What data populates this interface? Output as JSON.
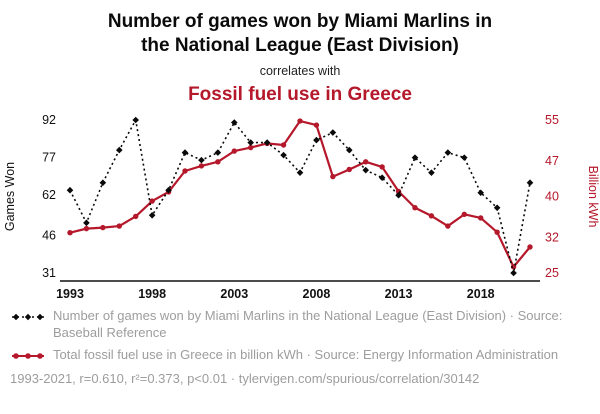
{
  "header": {
    "title_line1": "Number of games won by Miami Marlins in",
    "title_line2": "the National League (East Division)",
    "connector": "correlates with",
    "subtitle": "Fossil fuel use in Greece"
  },
  "colors": {
    "accent_red": "#b5182b",
    "text_gray": "#9d9d9d",
    "axis_black": "#111111"
  },
  "chart_data": {
    "type": "line",
    "title": "Number of games won by Miami Marlins in the National League (East Division) correlates with Fossil fuel use in Greece",
    "x": [
      1993,
      1994,
      1995,
      1996,
      1997,
      1998,
      1999,
      2000,
      2001,
      2002,
      2003,
      2004,
      2005,
      2006,
      2007,
      2008,
      2009,
      2010,
      2011,
      2012,
      2013,
      2014,
      2015,
      2016,
      2017,
      2018,
      2019,
      2020,
      2021
    ],
    "x_ticks": [
      1993,
      1998,
      2003,
      2008,
      2013,
      2018
    ],
    "series": [
      {
        "name": "Miami Marlins games won",
        "axis": "left",
        "color": "#0a0a0a",
        "style": "dotted-diamond",
        "values": [
          64,
          51,
          67,
          80,
          92,
          54,
          64,
          79,
          76,
          79,
          91,
          83,
          83,
          78,
          71,
          84,
          87,
          80,
          72,
          69,
          62,
          77,
          71,
          79,
          77,
          63,
          57,
          31,
          67
        ]
      },
      {
        "name": "Greece fossil fuel use (billion kWh)",
        "axis": "right",
        "color": "#b5182b",
        "style": "solid-circle",
        "values": [
          32.9,
          33.7,
          33.9,
          34.2,
          36.1,
          39.1,
          40.9,
          45.0,
          46.0,
          46.8,
          48.9,
          49.6,
          50.4,
          50.1,
          54.8,
          54.0,
          43.9,
          45.3,
          46.8,
          45.8,
          41.0,
          37.8,
          36.2,
          34.2,
          36.5,
          35.8,
          33.0,
          26.2,
          30.1
        ]
      }
    ],
    "left_axis": {
      "label": "Games Won",
      "ticks": [
        31,
        46,
        62,
        77,
        92
      ],
      "range": [
        31,
        92
      ]
    },
    "right_axis": {
      "label": "Billion kWh",
      "ticks": [
        25,
        32,
        40,
        47,
        55
      ],
      "range": [
        25,
        55
      ]
    },
    "grid": false,
    "legend_position": "bottom"
  },
  "legend": {
    "entries": [
      {
        "text": "Number of games won by Miami Marlins in the National League (East Division) · Source: Baseball Reference"
      },
      {
        "text": "Total fossil fuel use in Greece in billion kWh · Source: Energy Information Administration"
      }
    ],
    "footer": "1993-2021, r=0.610, r²=0.373, p<0.01 · tylervigen.com/spurious/correlation/30142"
  }
}
